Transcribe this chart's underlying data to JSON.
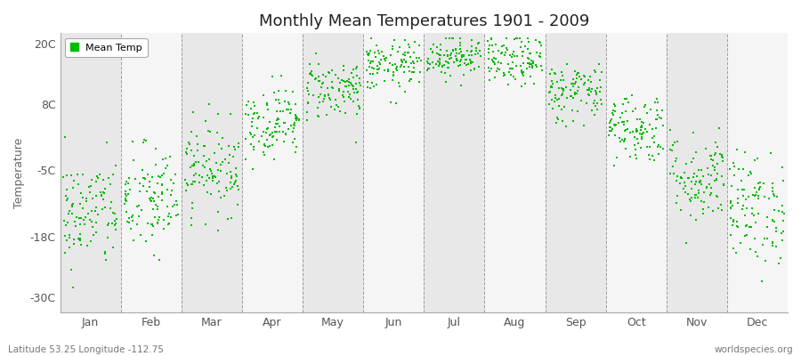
{
  "title": "Monthly Mean Temperatures 1901 - 2009",
  "ylabel": "Temperature",
  "subtitle_left": "Latitude 53.25 Longitude -112.75",
  "subtitle_right": "worldspecies.org",
  "legend_label": "Mean Temp",
  "yticks": [
    -30,
    -18,
    -5,
    8,
    20
  ],
  "ytick_labels": [
    "-30C",
    "-18C",
    "-5C",
    "8C",
    "20C"
  ],
  "ylim": [
    -33,
    22
  ],
  "xlim": [
    0,
    12
  ],
  "months": [
    "Jan",
    "Feb",
    "Mar",
    "Apr",
    "May",
    "Jun",
    "Jul",
    "Aug",
    "Sep",
    "Oct",
    "Nov",
    "Dec"
  ],
  "dot_color": "#00BB00",
  "background_color": "#ffffff",
  "band_color_light": "#e8e8e8",
  "band_color_white": "#f5f5f5",
  "n_years": 109,
  "monthly_means": [
    -13.5,
    -11.0,
    -4.5,
    4.5,
    11.0,
    15.5,
    17.5,
    16.5,
    10.5,
    3.5,
    -6.5,
    -12.5
  ],
  "monthly_stds": [
    5.5,
    5.5,
    4.5,
    3.5,
    3.0,
    2.5,
    2.0,
    2.5,
    3.0,
    3.5,
    4.5,
    5.5
  ],
  "seed": 42,
  "title_fontsize": 13,
  "axis_fontsize": 9,
  "tick_fontsize": 9,
  "legend_fontsize": 8,
  "dot_size": 3,
  "dot_marker": "s"
}
